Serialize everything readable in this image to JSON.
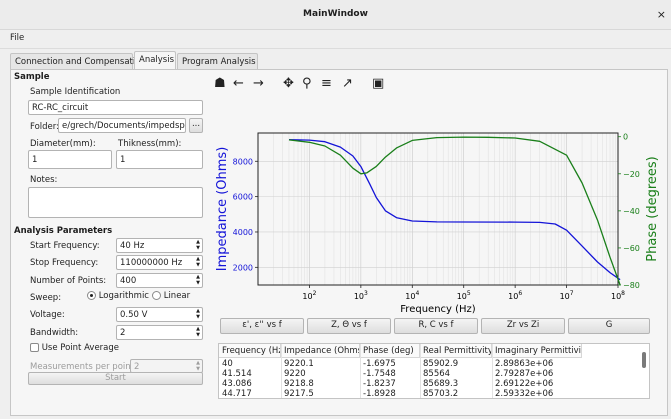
{
  "window": {
    "title": "MainWindow",
    "close_glyph": "×"
  },
  "menu": {
    "file": "File"
  },
  "tabs": [
    {
      "label": "Connection and Compensation"
    },
    {
      "label": "Analysis"
    },
    {
      "label": "Program Analysis"
    }
  ],
  "sample": {
    "section_title": "Sample",
    "identification_label": "Sample Identification",
    "identification_value": "RC-RC_circuit",
    "folder_label": "Folder:",
    "folder_value": "e/grech/Documents/impedspec/",
    "browse_label": "...",
    "diameter_label": "Diameter(mm):",
    "diameter_value": "1",
    "thickness_label": "Thikness(mm):",
    "thickness_value": "1",
    "notes_label": "Notes:",
    "notes_value": ""
  },
  "analysis": {
    "section_title": "Analysis Parameters",
    "start_freq_label": "Start Frequency:",
    "start_freq_value": "40 Hz",
    "stop_freq_label": "Stop Frequency:",
    "stop_freq_value": "110000000 Hz",
    "points_label": "Number of Points:",
    "points_value": "400",
    "sweep_label": "Sweep:",
    "sweep_log": "Logarithmic",
    "sweep_lin": "Linear",
    "voltage_label": "Voltage:",
    "voltage_value": "0.50 V",
    "bandwidth_label": "Bandwidth:",
    "bandwidth_value": "2",
    "use_point_average": "Use Point Average",
    "measurements_label": "Measurements per point:",
    "measurements_value": "2",
    "start_button": "Start"
  },
  "toolbar": {
    "home": "☗",
    "back": "←",
    "forward": "→",
    "pan": "✥",
    "zoom": "⚲",
    "configure": "≡",
    "edit": "↗",
    "save": "▣"
  },
  "chart_data": {
    "type": "line",
    "xlabel": "Frequency (Hz)",
    "ylabel": "Impedance (Ohms)",
    "y2label": "Phase (degrees)",
    "xscale": "log",
    "xlim": [
      10,
      100000000
    ],
    "xticks": [
      "10^2",
      "10^3",
      "10^4",
      "10^5",
      "10^6",
      "10^7",
      "10^8"
    ],
    "ylim": [
      1000,
      9600
    ],
    "yticks": [
      2000,
      4000,
      6000,
      8000
    ],
    "y2lim": [
      -80,
      2
    ],
    "y2ticks": [
      0,
      -20,
      -40,
      -60,
      -80
    ],
    "grid": true,
    "series": [
      {
        "axis": "left",
        "color": "#1414d8",
        "x": [
          40,
          100,
          200,
          400,
          700,
          1000,
          1500,
          2000,
          3000,
          5000,
          10000,
          30000,
          100000,
          1000000,
          3000000,
          6000000,
          10000000,
          20000000,
          40000000,
          70000000,
          110000000
        ],
        "y": [
          9220,
          9200,
          9110,
          8800,
          8300,
          7700,
          6700,
          5950,
          5200,
          4800,
          4620,
          4570,
          4565,
          4560,
          4540,
          4450,
          4100,
          3200,
          2300,
          1700,
          1300
        ]
      },
      {
        "axis": "right",
        "color": "#1a7f1a",
        "x": [
          40,
          100,
          200,
          400,
          700,
          1000,
          1300,
          2000,
          3000,
          5000,
          10000,
          30000,
          100000,
          300000,
          1000000,
          3000000,
          10000000,
          20000000,
          40000000,
          70000000,
          110000000
        ],
        "y": [
          -1.7,
          -3,
          -5,
          -10,
          -17,
          -20,
          -19.5,
          -16,
          -11,
          -6,
          -2,
          -0.5,
          -0.2,
          -0.3,
          -0.7,
          -2.5,
          -10,
          -25,
          -45,
          -65,
          -80
        ]
      }
    ]
  },
  "plot_buttons": [
    {
      "label": "ε', ε'' vs f"
    },
    {
      "label": "Z, Θ vs f"
    },
    {
      "label": "R, C vs f"
    },
    {
      "label": "Zr vs Zi"
    },
    {
      "label": "G"
    }
  ],
  "table": {
    "headers": [
      "Frequency (Hz)",
      "Impedance (Ohms)",
      "Phase (deg)",
      "Real Permittivity",
      "Imaginary Permittivity"
    ],
    "rows": [
      [
        "40",
        "9220.1",
        "-1.6975",
        "85902.9",
        "2.89863e+06"
      ],
      [
        "41.514",
        "9220",
        "-1.7548",
        "85564",
        "2.79287e+06"
      ],
      [
        "43.086",
        "9218.8",
        "-1.8237",
        "85689.3",
        "2.69122e+06"
      ],
      [
        "44.717",
        "9217.5",
        "-1.8928",
        "85703.2",
        "2.59332e+06"
      ]
    ]
  }
}
